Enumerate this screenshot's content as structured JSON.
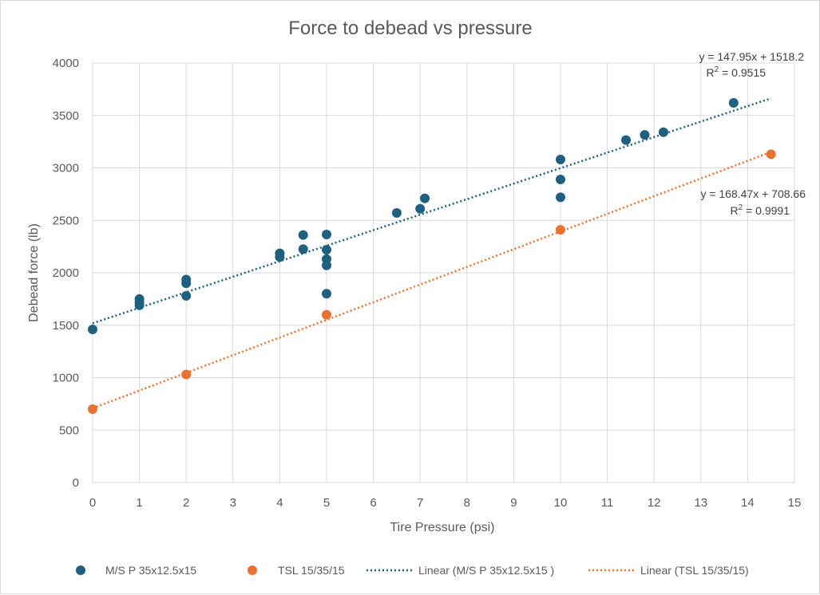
{
  "chart_data": {
    "type": "scatter",
    "title": "Force to debead vs pressure",
    "xlabel": "Tire Pressure (psi)",
    "ylabel": "Debead force (lb)",
    "xlim": [
      0,
      15
    ],
    "ylim": [
      0,
      4000
    ],
    "x_ticks": [
      "0",
      "1",
      "2",
      "3",
      "4",
      "5",
      "6",
      "7",
      "8",
      "9",
      "10",
      "11",
      "12",
      "13",
      "14",
      "15"
    ],
    "y_ticks": [
      "0",
      "500",
      "1000",
      "1500",
      "2000",
      "2500",
      "3000",
      "3500",
      "4000"
    ],
    "grid": true,
    "legend_position": "bottom",
    "series": [
      {
        "name": "M/S P 35x12.5x15",
        "color": "#1f5f7f",
        "points": [
          [
            0,
            1460
          ],
          [
            1,
            1750
          ],
          [
            1,
            1720
          ],
          [
            1,
            1690
          ],
          [
            2,
            1935
          ],
          [
            2,
            1900
          ],
          [
            2,
            1780
          ],
          [
            4,
            2185
          ],
          [
            4,
            2150
          ],
          [
            4.5,
            2360
          ],
          [
            4.5,
            2225
          ],
          [
            5,
            2365
          ],
          [
            5,
            2220
          ],
          [
            5,
            2130
          ],
          [
            5,
            2070
          ],
          [
            5,
            1800
          ],
          [
            6.5,
            2570
          ],
          [
            7,
            2610
          ],
          [
            7.1,
            2710
          ],
          [
            10,
            3080
          ],
          [
            10,
            2890
          ],
          [
            10,
            2720
          ],
          [
            11.4,
            3265
          ],
          [
            11.8,
            3315
          ],
          [
            12.2,
            3340
          ],
          [
            13.7,
            3620
          ]
        ]
      },
      {
        "name": "TSL 15/35/15",
        "color": "#e97132",
        "points": [
          [
            0,
            700
          ],
          [
            2,
            1030
          ],
          [
            5,
            1600
          ],
          [
            10,
            2410
          ],
          [
            14.5,
            3130
          ]
        ]
      }
    ],
    "trendlines": [
      {
        "name": "Linear (M/S P 35x12.5x15 )",
        "color": "#1f5f7f",
        "slope": 147.95,
        "intercept": 1518.2,
        "x_range": [
          0,
          14.5
        ],
        "equation": "y = 147.95x + 1518.2",
        "r2_prefix": "R",
        "r2_value": " = 0.9515"
      },
      {
        "name": "Linear (TSL 15/35/15)",
        "color": "#e97132",
        "slope": 168.47,
        "intercept": 708.66,
        "x_range": [
          0,
          14.5
        ],
        "equation": "y = 168.47x + 708.66",
        "r2_prefix": "R",
        "r2_value": " = 0.9991"
      }
    ]
  }
}
